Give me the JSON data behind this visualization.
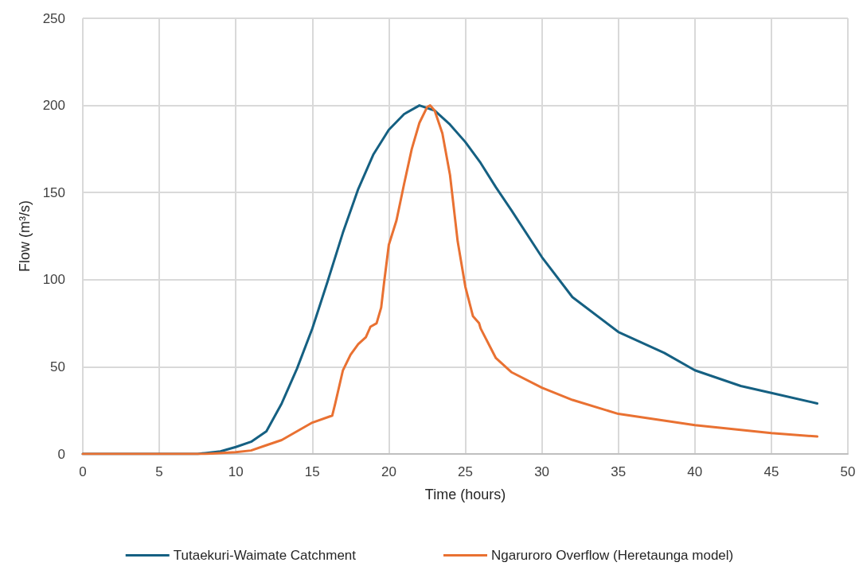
{
  "chart_data": {
    "type": "line",
    "xlabel": "Time (hours)",
    "ylabel": "Flow (m³/s)",
    "xlim": [
      0,
      50
    ],
    "xticks": [
      0,
      5,
      10,
      15,
      20,
      25,
      30,
      35,
      40,
      45,
      50
    ],
    "ylim": [
      0,
      250
    ],
    "yticks": [
      0,
      50,
      100,
      150,
      200,
      250
    ],
    "grid": true,
    "legend": "bottom",
    "marker": "none",
    "line_style": "solid",
    "series": [
      {
        "name": "Tutaekuri-Waimate Catchment",
        "color": "#156082",
        "x": [
          0,
          7.5,
          8,
          9,
          10,
          11,
          12,
          13,
          14,
          15,
          16,
          17,
          18,
          19,
          20,
          21,
          22,
          23,
          24,
          25,
          26,
          27,
          28,
          30,
          32,
          35,
          38,
          40,
          43,
          45,
          48
        ],
        "values": [
          0,
          0,
          0.5,
          1.5,
          4,
          7,
          13,
          29,
          49,
          72,
          99,
          127,
          152,
          172,
          186,
          195,
          200,
          197,
          189,
          179,
          167,
          153,
          140,
          113,
          90,
          70,
          58,
          48,
          39,
          35,
          29
        ]
      },
      {
        "name": "Ngaruroro Overflow (Heretaunga model)",
        "color": "#e97132",
        "x": [
          0,
          8,
          10,
          11,
          12,
          13,
          14,
          15,
          16.3,
          16.5,
          17,
          17.5,
          18,
          18.5,
          18.8,
          19.2,
          19.5,
          19.7,
          20,
          20.5,
          21,
          21.5,
          22,
          22.5,
          22.7,
          23,
          23.5,
          24,
          24.5,
          25,
          25.5,
          25.9,
          26,
          27,
          28,
          30,
          32,
          35,
          40,
          45,
          48
        ],
        "values": [
          0,
          0,
          1,
          2,
          5,
          8,
          13,
          18,
          22,
          29,
          48,
          57,
          63,
          67,
          73,
          75,
          84,
          99,
          120,
          134,
          155,
          175,
          190,
          199,
          200,
          197,
          184,
          160,
          122,
          96,
          79,
          75,
          72,
          55,
          47,
          38,
          31,
          23,
          16.5,
          12,
          10
        ]
      }
    ]
  }
}
